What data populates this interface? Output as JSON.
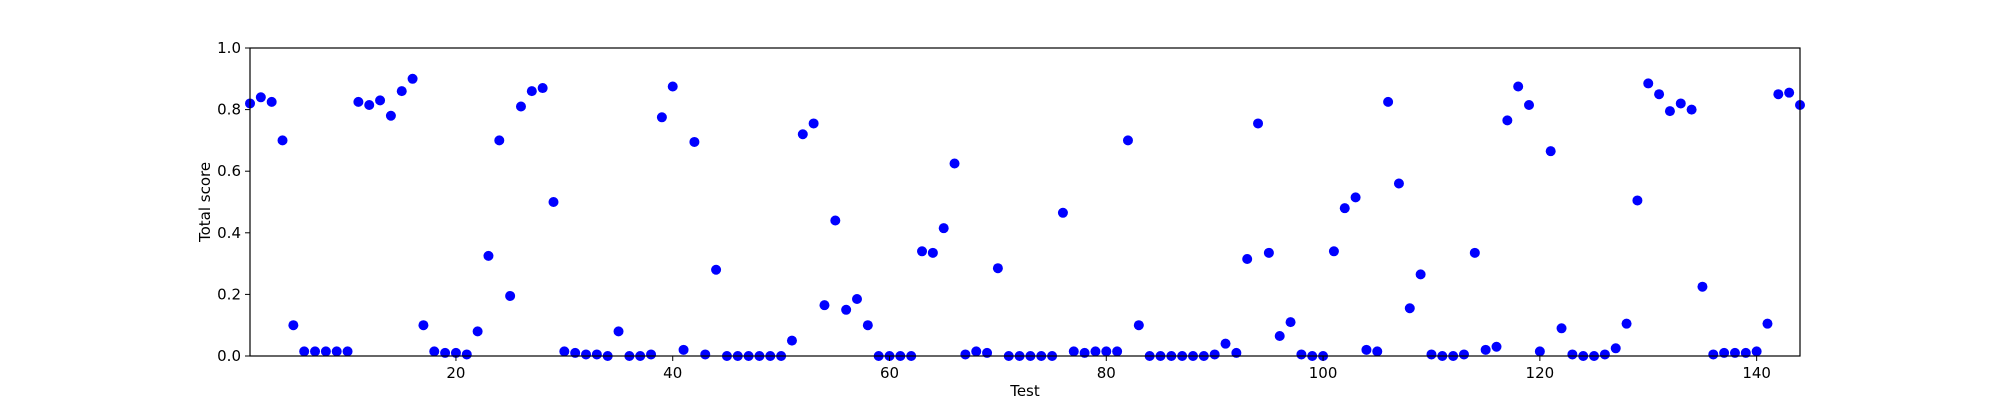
{
  "chart_data": {
    "type": "scatter",
    "xlabel": "Test",
    "ylabel": "Total score",
    "xlim": [
      1,
      144
    ],
    "ylim": [
      0,
      1.0
    ],
    "x_ticks": [
      20,
      40,
      60,
      80,
      100,
      120,
      140
    ],
    "y_ticks": [
      0.0,
      0.2,
      0.4,
      0.6,
      0.8,
      1.0
    ],
    "x_tick_labels": [
      "20",
      "40",
      "60",
      "80",
      "100",
      "120",
      "140"
    ],
    "y_tick_labels": [
      "0.0",
      "0.2",
      "0.4",
      "0.6",
      "0.8",
      "1.0"
    ],
    "marker_color": "#0000ff",
    "grid": false,
    "legend": "none",
    "x": [
      1,
      2,
      3,
      4,
      5,
      6,
      7,
      8,
      9,
      10,
      11,
      12,
      13,
      14,
      15,
      16,
      17,
      18,
      19,
      20,
      21,
      22,
      23,
      24,
      25,
      26,
      27,
      28,
      29,
      30,
      31,
      32,
      33,
      34,
      35,
      36,
      37,
      38,
      39,
      40,
      41,
      42,
      43,
      44,
      45,
      46,
      47,
      48,
      49,
      50,
      51,
      52,
      53,
      54,
      55,
      56,
      57,
      58,
      59,
      60,
      61,
      62,
      63,
      64,
      65,
      66,
      67,
      68,
      69,
      70,
      71,
      72,
      73,
      74,
      75,
      76,
      77,
      78,
      79,
      80,
      81,
      82,
      83,
      84,
      85,
      86,
      87,
      88,
      89,
      90,
      91,
      92,
      93,
      94,
      95,
      96,
      97,
      98,
      99,
      100,
      101,
      102,
      103,
      104,
      105,
      106,
      107,
      108,
      109,
      110,
      111,
      112,
      113,
      114,
      115,
      116,
      117,
      118,
      119,
      120,
      121,
      122,
      123,
      124,
      125,
      126,
      127,
      128,
      129,
      130,
      131,
      132,
      133,
      134,
      135,
      136,
      137,
      138,
      139,
      140,
      141,
      142,
      143,
      144
    ],
    "y": [
      0.82,
      0.84,
      0.825,
      0.7,
      0.1,
      0.015,
      0.015,
      0.015,
      0.015,
      0.015,
      0.825,
      0.815,
      0.83,
      0.78,
      0.86,
      0.9,
      0.1,
      0.015,
      0.01,
      0.01,
      0.005,
      0.08,
      0.325,
      0.7,
      0.195,
      0.81,
      0.86,
      0.87,
      0.5,
      0.015,
      0.01,
      0.005,
      0.005,
      0.0,
      0.08,
      0.0,
      0.0,
      0.005,
      0.775,
      0.875,
      0.02,
      0.695,
      0.005,
      0.28,
      0.0,
      0.0,
      0.0,
      0.0,
      0.0,
      0.0,
      0.05,
      0.72,
      0.755,
      0.165,
      0.44,
      0.15,
      0.185,
      0.1,
      0.0,
      0.0,
      0.0,
      0.0,
      0.34,
      0.335,
      0.415,
      0.625,
      0.005,
      0.015,
      0.01,
      0.285,
      0.0,
      0.0,
      0.0,
      0.0,
      0.0,
      0.465,
      0.015,
      0.01,
      0.015,
      0.015,
      0.015,
      0.7,
      0.1,
      0.0,
      0.0,
      0.0,
      0.0,
      0.0,
      0.0,
      0.005,
      0.04,
      0.01,
      0.315,
      0.755,
      0.335,
      0.065,
      0.11,
      0.005,
      0.0,
      0.0,
      0.34,
      0.48,
      0.515,
      0.02,
      0.015,
      0.825,
      0.56,
      0.155,
      0.265,
      0.005,
      0.0,
      0.0,
      0.005,
      0.335,
      0.02,
      0.03,
      0.765,
      0.875,
      0.815,
      0.015,
      0.665,
      0.09,
      0.005,
      0.0,
      0.0,
      0.005,
      0.025,
      0.105,
      0.505,
      0.885,
      0.85,
      0.795,
      0.82,
      0.8,
      0.225,
      0.005,
      0.01,
      0.01,
      0.01,
      0.015,
      0.105,
      0.85,
      0.855,
      0.815
    ]
  }
}
